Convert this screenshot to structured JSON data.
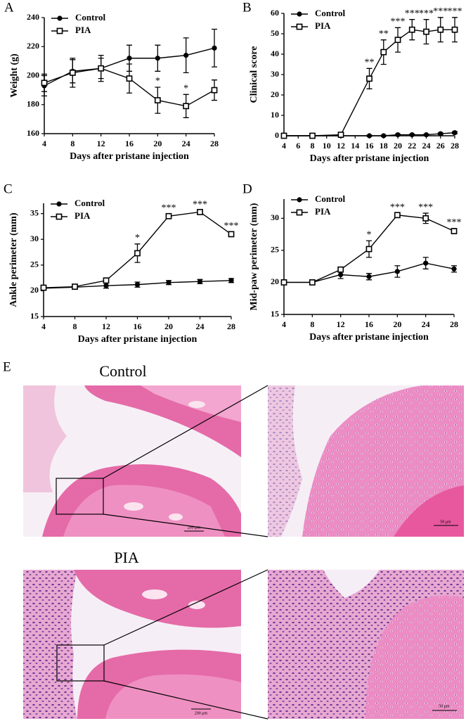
{
  "chart_data": [
    {
      "type": "line",
      "panel_label": "A",
      "xlabel": "Days after pristane injection",
      "ylabel": "Weight (g)",
      "x": [
        4,
        8,
        12,
        16,
        20,
        24,
        28
      ],
      "xlim": [
        4,
        28
      ],
      "xticks": [
        4,
        8,
        12,
        16,
        20,
        24,
        28
      ],
      "ylim": [
        160,
        240
      ],
      "yticks": [
        160,
        180,
        200,
        220,
        240
      ],
      "legend": "upper left",
      "series": [
        {
          "name": "Control",
          "color": "#000000",
          "marker": "circle",
          "values": [
            193,
            203,
            205,
            212,
            212,
            214,
            219
          ],
          "errors": [
            7,
            8,
            9,
            9,
            9,
            12,
            13
          ]
        },
        {
          "name": "PIA",
          "color": "#000000",
          "marker": "square",
          "values": [
            195,
            202,
            205,
            198,
            183,
            179,
            190
          ],
          "errors": [
            6,
            10,
            7,
            10,
            9,
            8,
            7
          ],
          "significance": [
            null,
            null,
            null,
            null,
            "*",
            "*",
            null
          ]
        }
      ]
    },
    {
      "type": "line",
      "panel_label": "B",
      "xlabel": "Days after pristane injection",
      "ylabel": "Clinical score",
      "x": [
        4,
        8,
        12,
        16,
        18,
        20,
        22,
        24,
        26,
        28
      ],
      "xlim": [
        4,
        28
      ],
      "xticks": [
        4,
        6,
        8,
        10,
        12,
        14,
        16,
        18,
        20,
        22,
        24,
        26,
        28
      ],
      "ylim": [
        0,
        60
      ],
      "yticks": [
        0,
        10,
        20,
        30,
        40,
        50,
        60
      ],
      "legend": "upper left",
      "series": [
        {
          "name": "Control",
          "color": "#000000",
          "marker": "circle",
          "values": [
            0,
            0,
            0,
            0,
            0,
            0.5,
            0.5,
            0.5,
            1,
            1.5
          ],
          "errors": [
            0.3,
            0.3,
            0.3,
            0.3,
            0.3,
            0.3,
            0.3,
            0.3,
            0.4,
            0.5
          ]
        },
        {
          "name": "PIA",
          "color": "#000000",
          "marker": "square",
          "values": [
            0,
            0,
            0.5,
            28,
            41,
            47,
            52,
            51,
            52,
            52
          ],
          "errors": [
            0,
            0,
            0.3,
            5,
            6,
            6,
            5,
            6,
            6,
            6
          ],
          "significance": [
            null,
            null,
            null,
            "**",
            "**",
            "***",
            "***",
            "***",
            "***",
            "***"
          ]
        }
      ]
    },
    {
      "type": "line",
      "panel_label": "C",
      "xlabel": "Days after pristane injection",
      "ylabel": "Ankle perimeter (mm)",
      "x": [
        4,
        8,
        12,
        16,
        20,
        24,
        28
      ],
      "xlim": [
        4,
        28
      ],
      "xticks": [
        4,
        8,
        12,
        16,
        20,
        24,
        28
      ],
      "ylim": [
        15,
        37
      ],
      "yticks": [
        15,
        20,
        25,
        30,
        35
      ],
      "legend": "upper left",
      "series": [
        {
          "name": "Control",
          "color": "#000000",
          "marker": "circle",
          "values": [
            20.5,
            20.7,
            21,
            21.2,
            21.6,
            21.8,
            22
          ],
          "errors": [
            0.4,
            0.4,
            0.5,
            0.5,
            0.4,
            0.4,
            0.4
          ]
        },
        {
          "name": "PIA",
          "color": "#000000",
          "marker": "square",
          "values": [
            20.6,
            20.8,
            22,
            27.3,
            34.5,
            35.3,
            31
          ],
          "errors": [
            0.3,
            0.3,
            0.4,
            1.8,
            0.4,
            0.3,
            0.4
          ],
          "significance": [
            null,
            null,
            null,
            "*",
            "***",
            "***",
            "***"
          ]
        }
      ]
    },
    {
      "type": "line",
      "panel_label": "D",
      "xlabel": "Days after pristane injection",
      "ylabel": "Mid-paw perimeter (mm)",
      "x": [
        4,
        8,
        12,
        16,
        20,
        24,
        28
      ],
      "xlim": [
        4,
        28
      ],
      "xticks": [
        4,
        8,
        12,
        16,
        20,
        24,
        28
      ],
      "ylim": [
        15,
        33
      ],
      "yticks": [
        15,
        20,
        25,
        30
      ],
      "legend": "upper left",
      "series": [
        {
          "name": "Control",
          "color": "#000000",
          "marker": "circle",
          "values": [
            20,
            20,
            21.2,
            20.9,
            21.7,
            23,
            22.1
          ],
          "errors": [
            0,
            0,
            0.6,
            0.5,
            0.9,
            0.9,
            0.5
          ]
        },
        {
          "name": "PIA",
          "color": "#000000",
          "marker": "square",
          "values": [
            20,
            20,
            22,
            25.2,
            30.5,
            30,
            28
          ],
          "errors": [
            0,
            0,
            0.3,
            1.3,
            0.3,
            0.8,
            0.4
          ],
          "significance": [
            null,
            null,
            null,
            "*",
            "***",
            "***",
            "***"
          ]
        }
      ]
    }
  ],
  "histology": {
    "panel_label": "E",
    "groups": [
      {
        "title": "Control",
        "scale_bars": [
          "200 μm",
          "50 μm"
        ]
      },
      {
        "title": "PIA",
        "scale_bars": [
          "200 μm",
          "50 μm"
        ]
      }
    ]
  }
}
